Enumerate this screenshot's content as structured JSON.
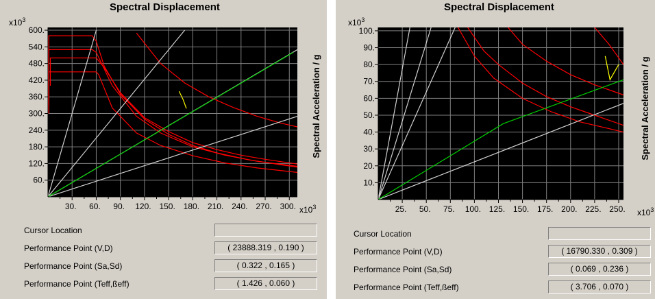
{
  "panels": [
    {
      "title": "Spectral Displacement",
      "y_multiplier": "x10",
      "y_multiplier_exp": "3",
      "x_multiplier": "x10",
      "x_multiplier_exp": "3",
      "y_axis_label": "Spectral Acceleration / g",
      "rows": [
        {
          "label": "Cursor Location",
          "value": ""
        },
        {
          "label": "Performance Point (V,D)",
          "value": "( 23888.319 , 0.190 )"
        },
        {
          "label": "Performance Point (Sa,Sd)",
          "value": "( 0.322 , 0.165 )"
        },
        {
          "label": "Performance Point (Teff,ßeff)",
          "value": "( 1.426 , 0.060 )"
        }
      ]
    },
    {
      "title": "Spectral Displacement",
      "y_multiplier": "x10",
      "y_multiplier_exp": "3",
      "x_multiplier": "x10",
      "x_multiplier_exp": "3",
      "y_axis_label": "Spectral Acceleration / g",
      "rows": [
        {
          "label": "Cursor Location",
          "value": ""
        },
        {
          "label": "Performance Point (V,D)",
          "value": "( 16790.330 , 0.309 )"
        },
        {
          "label": "Performance Point (Sa,Sd)",
          "value": "( 0.069 , 0.236 )"
        },
        {
          "label": "Performance Point (Teff,ßeff)",
          "value": "( 3.706 , 0.070 )"
        }
      ]
    }
  ],
  "colors": {
    "plot_background": "#000000",
    "grid": "#808080",
    "demand_curves": "#ff0000",
    "period_lines": "#d0d0d0",
    "capacity_curve": "#00d000",
    "performance_point_marker": "#ffff00",
    "panel_background": "#d4d0c8"
  },
  "chart_data": [
    {
      "type": "line",
      "x_ticks": [
        "30.",
        "60.",
        "90.",
        "120.",
        "150.",
        "180.",
        "210.",
        "240.",
        "270.",
        "300."
      ],
      "y_ticks": [
        "60.",
        "120.",
        "180.",
        "240.",
        "300.",
        "360.",
        "420.",
        "480.",
        "540.",
        "600."
      ],
      "xlim": [
        0,
        310
      ],
      "ylim": [
        0,
        610
      ],
      "grid": true,
      "series": [
        {
          "color": "red",
          "x": [
            1,
            1,
            3,
            55,
            55,
            60,
            70,
            90,
            120,
            150,
            180,
            210,
            250,
            290,
            310
          ],
          "y": [
            360,
            580,
            580,
            580,
            580,
            560,
            470,
            370,
            280,
            225,
            185,
            158,
            133,
            115,
            107
          ]
        },
        {
          "color": "red",
          "x": [
            1,
            1,
            3,
            55,
            60,
            80,
            110,
            140,
            180,
            220,
            260,
            310
          ],
          "y": [
            330,
            530,
            530,
            530,
            520,
            400,
            290,
            230,
            180,
            150,
            128,
            110
          ]
        },
        {
          "color": "red",
          "x": [
            1,
            1,
            3,
            60,
            63,
            80,
            110,
            140,
            180,
            220,
            260,
            310
          ],
          "y": [
            300,
            450,
            450,
            450,
            440,
            320,
            230,
            185,
            148,
            122,
            104,
            88
          ]
        },
        {
          "color": "red",
          "x": [
            3,
            3,
            55,
            60,
            70,
            90,
            120,
            150,
            180,
            210,
            240,
            270,
            310
          ],
          "y": [
            400,
            500,
            500,
            500,
            465,
            375,
            285,
            235,
            195,
            170,
            150,
            135,
            118
          ]
        },
        {
          "color": "red",
          "x": [
            110,
            140,
            170,
            200,
            230,
            260,
            290,
            310
          ],
          "y": [
            590,
            480,
            410,
            360,
            322,
            290,
            265,
            252
          ]
        },
        {
          "color": "white",
          "x": [
            0,
            60
          ],
          "y": [
            0,
            600
          ]
        },
        {
          "color": "white",
          "x": [
            0,
            170
          ],
          "y": [
            0,
            600
          ]
        },
        {
          "color": "white",
          "x": [
            0,
            310
          ],
          "y": [
            0,
            530
          ]
        },
        {
          "color": "white",
          "x": [
            0,
            310
          ],
          "y": [
            0,
            290
          ]
        },
        {
          "color": "green",
          "x": [
            0,
            305
          ],
          "y": [
            0,
            520
          ]
        },
        {
          "color": "yellow",
          "x": [
            163,
            168,
            172
          ],
          "y": [
            380,
            350,
            318
          ]
        }
      ]
    },
    {
      "type": "line",
      "x_ticks": [
        "25.",
        "50.",
        "75.",
        "100.",
        "125.",
        "150.",
        "175.",
        "200.",
        "225.",
        "250."
      ],
      "y_ticks": [
        "10.",
        "20.",
        "30.",
        "40.",
        "50.",
        "60.",
        "70.",
        "80.",
        "90.",
        "100."
      ],
      "xlim": [
        0,
        255
      ],
      "ylim": [
        0,
        102
      ],
      "grid": true,
      "series": [
        {
          "color": "red",
          "x": [
            93,
            110,
            125,
            150,
            175,
            200,
            225,
            255
          ],
          "y": [
            102,
            88,
            80,
            69,
            61,
            55,
            50,
            44
          ]
        },
        {
          "color": "red",
          "x": [
            83,
            100,
            120,
            150,
            180,
            210,
            240,
            255
          ],
          "y": [
            102,
            85,
            72,
            60,
            52,
            46,
            42,
            40
          ]
        },
        {
          "color": "red",
          "x": [
            135,
            150,
            175,
            200,
            225,
            255
          ],
          "y": [
            102,
            92,
            82,
            74,
            68,
            62
          ]
        },
        {
          "color": "red",
          "x": [
            225,
            240,
            255
          ],
          "y": [
            102,
            92,
            80
          ]
        },
        {
          "color": "white",
          "x": [
            0,
            33
          ],
          "y": [
            0,
            102
          ]
        },
        {
          "color": "white",
          "x": [
            0,
            55
          ],
          "y": [
            0,
            102
          ]
        },
        {
          "color": "white",
          "x": [
            0,
            80
          ],
          "y": [
            0,
            102
          ]
        },
        {
          "color": "white",
          "x": [
            0,
            255
          ],
          "y": [
            0,
            57
          ]
        },
        {
          "color": "green",
          "x": [
            0,
            130,
            255
          ],
          "y": [
            0,
            45,
            71
          ]
        },
        {
          "color": "yellow",
          "x": [
            236,
            241,
            250
          ],
          "y": [
            85,
            71,
            80
          ]
        }
      ]
    }
  ]
}
